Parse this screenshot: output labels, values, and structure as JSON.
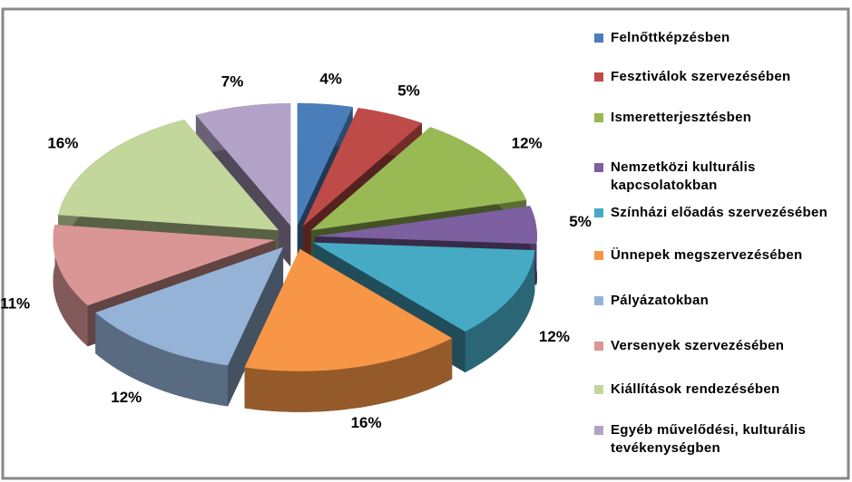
{
  "chart_data": {
    "type": "pie3d",
    "categories": [
      "Felnőttképzésben",
      "Fesztiválok szervezésében",
      "Ismeretterjesztésben",
      "Nemzetközi kulturális kapcsolatokban",
      "Színházi előadás szervezésében",
      "Ünnepek megszervezésében",
      "Pályázatokban",
      "Versenyek szervezésében",
      "Kiállítások rendezésében",
      "Egyéb művelődési, kulturális tevékenységben"
    ],
    "values": [
      4,
      5,
      12,
      5,
      12,
      16,
      12,
      11,
      16,
      7
    ],
    "value_labels": [
      "4%",
      "5%",
      "12%",
      "5%",
      "12%",
      "16%",
      "12%",
      "11%",
      "16%",
      "7%"
    ],
    "colors": [
      "#4a7ebb",
      "#be4b48",
      "#98b954",
      "#7d60a0",
      "#46aac5",
      "#f79646",
      "#95b3d7",
      "#d99694",
      "#c3d69b",
      "#b3a2c7"
    ],
    "legend": "right"
  }
}
